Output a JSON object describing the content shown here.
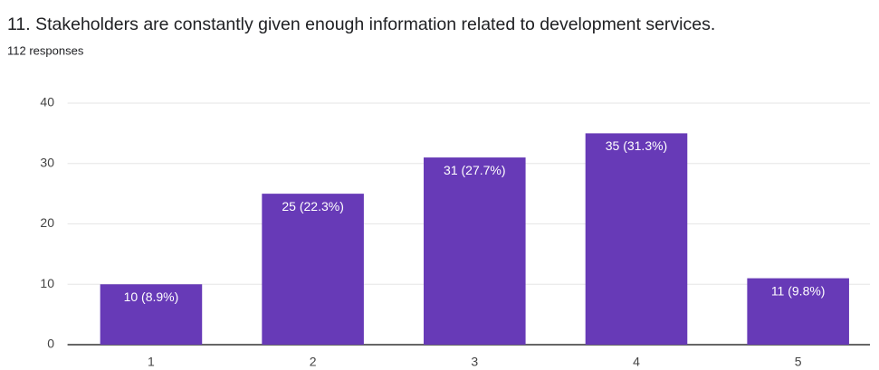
{
  "chart_data": {
    "type": "bar",
    "title": "11.  Stakeholders are constantly given enough information related to development services.",
    "subtitle": "112 responses",
    "categories": [
      "1",
      "2",
      "3",
      "4",
      "5"
    ],
    "values": [
      10,
      25,
      31,
      35,
      11
    ],
    "value_labels": [
      "10 (8.9%)",
      "25 (22.3%)",
      "31 (27.7%)",
      "35 (31.3%)",
      "11 (9.8%)"
    ],
    "color": "#673ab7",
    "ylim": [
      0,
      40
    ],
    "yticks": [
      0,
      10,
      20,
      30,
      40
    ],
    "grid": true
  }
}
